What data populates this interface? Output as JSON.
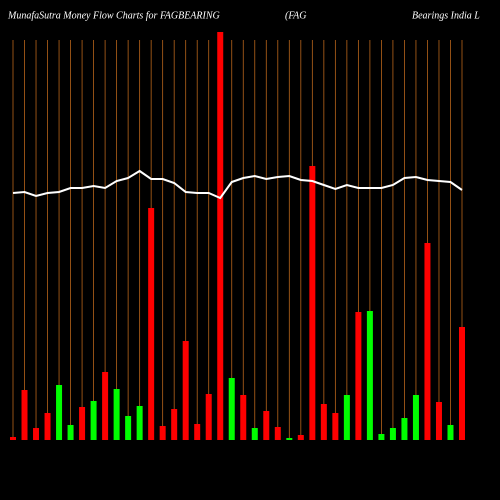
{
  "chart_data": {
    "type": "bar",
    "title": "MunafaSutra  Money Flow  Charts for FAGBEARING",
    "subtitle": "(FAG",
    "title_right": "Bearings India  L",
    "categories": [
      null,
      null,
      null,
      null,
      null,
      null,
      null,
      null,
      null,
      null,
      null,
      null,
      null,
      null,
      null,
      null,
      null,
      null,
      null,
      null,
      null,
      null,
      null,
      null,
      null,
      null,
      null,
      null,
      null,
      null,
      null,
      null,
      null,
      null,
      null,
      null,
      null,
      null,
      null,
      null
    ],
    "values": [
      3,
      50,
      12,
      27,
      55,
      15,
      33,
      39,
      68,
      51,
      24,
      34,
      232,
      14,
      31,
      99,
      16,
      46,
      408,
      62,
      45,
      12,
      29,
      13,
      2,
      5,
      274,
      36,
      27,
      45,
      128,
      129,
      6,
      12,
      22,
      45,
      197,
      38,
      15,
      113
    ],
    "bar_colors": [
      "#ff0000",
      "#ff0000",
      "#ff0000",
      "#ff0000",
      "#00ff00",
      "#00ff00",
      "#ff0000",
      "#00ff00",
      "#ff0000",
      "#00ff00",
      "#00ff00",
      "#00ff00",
      "#ff0000",
      "#ff0000",
      "#ff0000",
      "#ff0000",
      "#ff0000",
      "#ff0000",
      "#ff0000",
      "#00ff00",
      "#ff0000",
      "#00ff00",
      "#ff0000",
      "#ff0000",
      "#00ff00",
      "#ff0000",
      "#ff0000",
      "#ff0000",
      "#ff0000",
      "#00ff00",
      "#ff0000",
      "#00ff00",
      "#00ff00",
      "#00ff00",
      "#00ff00",
      "#00ff00",
      "#ff0000",
      "#ff0000",
      "#00ff00",
      "#ff0000"
    ],
    "line_values": [
      247,
      248,
      244,
      247,
      248,
      252,
      252,
      254,
      252,
      259,
      262,
      269,
      261,
      261,
      257,
      248,
      247,
      247,
      242,
      258,
      262,
      264,
      261,
      263,
      264,
      260,
      259,
      255,
      251,
      255,
      252,
      252,
      252,
      255,
      262,
      263,
      260,
      259,
      258,
      250
    ],
    "line_color": "#ffffff",
    "grid_color": "#b8651b",
    "ylim": [
      0,
      410
    ]
  }
}
